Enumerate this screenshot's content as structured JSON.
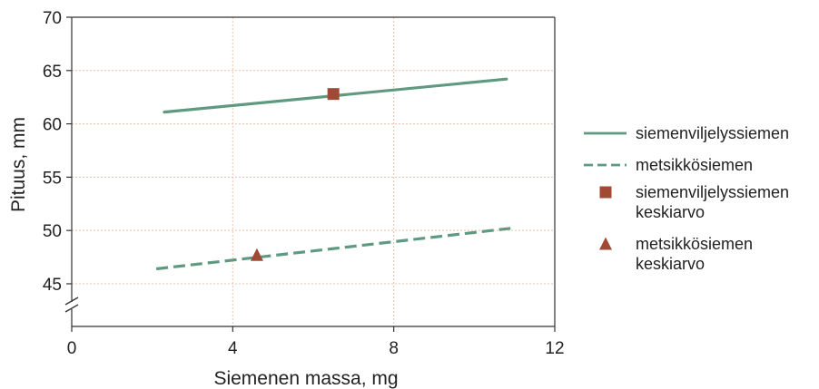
{
  "chart_data": {
    "type": "line",
    "xlabel": "Siemenen massa, mg",
    "ylabel": "Pituus, mm",
    "xlim": [
      0,
      12
    ],
    "ylim": [
      41,
      70
    ],
    "x_ticks": [
      {
        "value": 0,
        "label": "0"
      },
      {
        "value": 4,
        "label": "4"
      },
      {
        "value": 8,
        "label": "8"
      },
      {
        "value": 12,
        "label": "12"
      }
    ],
    "y_ticks": [
      {
        "value": 45,
        "label": "45"
      },
      {
        "value": 50,
        "label": "50"
      },
      {
        "value": 55,
        "label": "55"
      },
      {
        "value": 60,
        "label": "60"
      },
      {
        "value": 65,
        "label": "65"
      },
      {
        "value": 70,
        "label": "70"
      }
    ],
    "y_axis_break": true,
    "grid": true,
    "legend_position": "right",
    "series": [
      {
        "name": "siemenviljelyssiemen",
        "style": "solid",
        "color": "#5f9a80",
        "x": [
          2.3,
          10.8
        ],
        "y": [
          61.1,
          64.2
        ]
      },
      {
        "name": "metsikkösiemen",
        "style": "dashed",
        "color": "#5f9a80",
        "x": [
          2.1,
          10.9
        ],
        "y": [
          46.4,
          50.2
        ]
      }
    ],
    "markers": [
      {
        "name_lines": [
          "siemenviljelyssiemen",
          "keskiarvo"
        ],
        "shape": "square",
        "color": "#a04a35",
        "x": 6.5,
        "y": 62.8
      },
      {
        "name_lines": [
          "metsikkösiemen",
          "keskiarvo"
        ],
        "shape": "triangle",
        "color": "#a04a35",
        "x": 4.6,
        "y": 47.7
      }
    ],
    "colors": {
      "grid": "#f0c0a8",
      "axis": "#333333"
    }
  }
}
